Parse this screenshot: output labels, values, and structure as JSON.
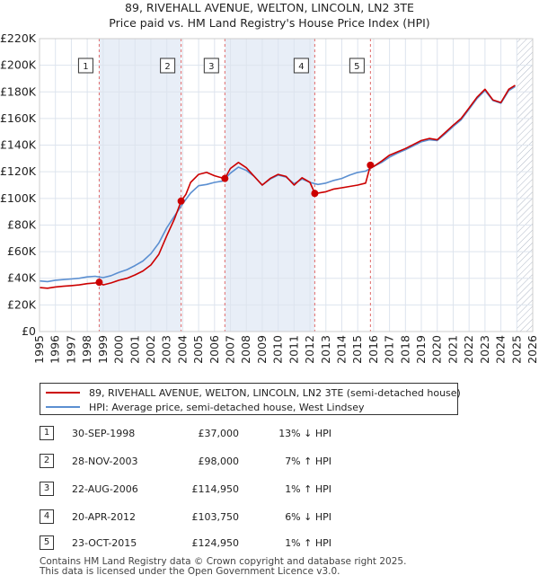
{
  "chart_data": {
    "type": "line",
    "title": "89, RIVEHALL AVENUE, WELTON, LINCOLN, LN2 3TE",
    "subtitle": "Price paid vs. HM Land Registry's House Price Index (HPI)",
    "xlabel": "",
    "ylabel": "",
    "xlim": [
      1995,
      2026
    ],
    "ylim": [
      0,
      220000
    ],
    "x_ticks": [
      1995,
      1996,
      1997,
      1998,
      1999,
      2000,
      2001,
      2002,
      2003,
      2004,
      2005,
      2006,
      2007,
      2008,
      2009,
      2010,
      2011,
      2012,
      2013,
      2014,
      2015,
      2016,
      2017,
      2018,
      2019,
      2020,
      2021,
      2022,
      2023,
      2024,
      2025,
      2026
    ],
    "y_ticks": [
      {
        "value": 0,
        "label": "£0"
      },
      {
        "value": 20000,
        "label": "£20K"
      },
      {
        "value": 40000,
        "label": "£40K"
      },
      {
        "value": 60000,
        "label": "£60K"
      },
      {
        "value": 80000,
        "label": "£80K"
      },
      {
        "value": 100000,
        "label": "£100K"
      },
      {
        "value": 120000,
        "label": "£120K"
      },
      {
        "value": 140000,
        "label": "£140K"
      },
      {
        "value": 160000,
        "label": "£160K"
      },
      {
        "value": 180000,
        "label": "£180K"
      },
      {
        "value": 200000,
        "label": "£200K"
      },
      {
        "value": 220000,
        "label": "£220K"
      }
    ],
    "grid": true,
    "series": [
      {
        "name": "89, RIVEHALL AVENUE, WELTON, LINCOLN, LN2 3TE (semi-detached house)",
        "color": "#cc0000",
        "x": [
          1995.0,
          1995.5,
          1996.0,
          1996.5,
          1997.0,
          1997.5,
          1998.0,
          1998.5,
          1998.75,
          1999.0,
          1999.5,
          2000.0,
          2000.5,
          2001.0,
          2001.5,
          2002.0,
          2002.5,
          2003.0,
          2003.5,
          2003.9,
          2004.2,
          2004.5,
          2005.0,
          2005.5,
          2006.0,
          2006.3,
          2006.65,
          2007.0,
          2007.5,
          2008.0,
          2008.5,
          2009.0,
          2009.5,
          2010.0,
          2010.5,
          2011.0,
          2011.5,
          2012.0,
          2012.3,
          2012.5,
          2013.0,
          2013.5,
          2014.0,
          2014.5,
          2015.0,
          2015.5,
          2015.8,
          2016.0,
          2016.5,
          2017.0,
          2017.5,
          2018.0,
          2018.5,
          2019.0,
          2019.5,
          2020.0,
          2020.5,
          2021.0,
          2021.5,
          2022.0,
          2022.5,
          2023.0,
          2023.5,
          2024.0,
          2024.5,
          2024.9
        ],
        "values": [
          33000,
          32500,
          33500,
          34000,
          34500,
          35000,
          36000,
          36500,
          37000,
          35000,
          36500,
          38500,
          40000,
          42500,
          45500,
          50000,
          58000,
          72000,
          85000,
          98000,
          103000,
          112000,
          118000,
          119500,
          117000,
          116000,
          114950,
          122500,
          127000,
          123000,
          116500,
          110000,
          115000,
          118000,
          116500,
          110000,
          115500,
          112000,
          103750,
          104000,
          105000,
          107000,
          108000,
          109000,
          110000,
          111500,
          124950,
          124000,
          128000,
          132500,
          135000,
          137500,
          140500,
          143500,
          145000,
          144000,
          149500,
          155000,
          160000,
          168000,
          176000,
          182000,
          174000,
          172000,
          182000,
          185000
        ]
      },
      {
        "name": "HPI: Average price, semi-detached house, West Lindsey",
        "color": "#5b8fd1",
        "x": [
          1995.0,
          1995.5,
          1996.0,
          1996.5,
          1997.0,
          1997.5,
          1998.0,
          1998.5,
          1999.0,
          1999.5,
          2000.0,
          2000.5,
          2001.0,
          2001.5,
          2002.0,
          2002.5,
          2003.0,
          2003.5,
          2004.0,
          2004.5,
          2005.0,
          2005.5,
          2006.0,
          2006.5,
          2007.0,
          2007.5,
          2008.0,
          2008.5,
          2009.0,
          2009.5,
          2010.0,
          2010.5,
          2011.0,
          2011.5,
          2012.0,
          2012.5,
          2013.0,
          2013.5,
          2014.0,
          2014.5,
          2015.0,
          2015.5,
          2016.0,
          2016.5,
          2017.0,
          2017.5,
          2018.0,
          2018.5,
          2019.0,
          2019.5,
          2020.0,
          2020.5,
          2021.0,
          2021.5,
          2022.0,
          2022.5,
          2023.0,
          2023.5,
          2024.0,
          2024.5,
          2024.9
        ],
        "values": [
          38000,
          37500,
          38500,
          39000,
          39500,
          40000,
          41000,
          41500,
          40500,
          42000,
          44500,
          46500,
          49500,
          53000,
          58500,
          66500,
          78000,
          87000,
          96000,
          104000,
          109500,
          110500,
          112000,
          113000,
          119000,
          123500,
          121000,
          116500,
          110000,
          114500,
          117500,
          116000,
          111000,
          114500,
          112000,
          110500,
          111500,
          113500,
          115000,
          117500,
          119500,
          120500,
          124000,
          127000,
          131000,
          134000,
          136500,
          139500,
          142500,
          144000,
          143500,
          148500,
          154000,
          159000,
          167000,
          175000,
          181000,
          173500,
          171500,
          181000,
          184000
        ]
      }
    ],
    "transactions_markers": [
      {
        "label": "1",
        "x": 1998.75,
        "y": 37000
      },
      {
        "label": "2",
        "x": 2003.9,
        "y": 98000
      },
      {
        "label": "3",
        "x": 2006.65,
        "y": 114950
      },
      {
        "label": "4",
        "x": 2012.3,
        "y": 103750
      },
      {
        "label": "5",
        "x": 2015.8,
        "y": 124950
      }
    ],
    "future_hatch_from": 2025.0,
    "marker_color": "#cc0000",
    "vline_color": "#e06a6a",
    "span_color": "#e8eef7",
    "hatch_color": "#b0b8c6"
  },
  "legend": {
    "entries": [
      {
        "label": "89, RIVEHALL AVENUE, WELTON, LINCOLN, LN2 3TE (semi-detached house)",
        "color": "#cc0000"
      },
      {
        "label": "HPI: Average price, semi-detached house, West Lindsey",
        "color": "#5b8fd1"
      }
    ]
  },
  "transactions": [
    {
      "num": "1",
      "date": "30-SEP-1998",
      "price": "£37,000",
      "hpi": "13% ↓ HPI"
    },
    {
      "num": "2",
      "date": "28-NOV-2003",
      "price": "£98,000",
      "hpi": "7% ↑ HPI"
    },
    {
      "num": "3",
      "date": "22-AUG-2006",
      "price": "£114,950",
      "hpi": "1% ↑ HPI"
    },
    {
      "num": "4",
      "date": "20-APR-2012",
      "price": "£103,750",
      "hpi": "6% ↓ HPI"
    },
    {
      "num": "5",
      "date": "23-OCT-2015",
      "price": "£124,950",
      "hpi": "1% ↑ HPI"
    }
  ],
  "footer": {
    "line1": "Contains HM Land Registry data © Crown copyright and database right 2025.",
    "line2": "This data is licensed under the Open Government Licence v3.0."
  }
}
